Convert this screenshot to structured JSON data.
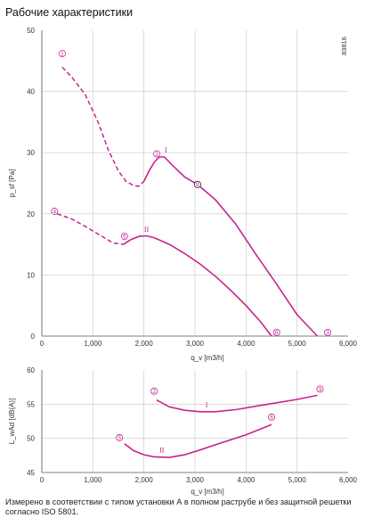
{
  "title": "Рабочие характеристики",
  "footnote": "Измерено в соответствии с типом установки А в полном раструбе и без защитной решетки согласно ISO 5801.",
  "colors": {
    "curve": "#c8238f",
    "grid": "#c8c8c8",
    "axis": "#555555"
  },
  "chart_data": [
    {
      "type": "line",
      "code": "83816",
      "xlabel": "q_v [m3/h]",
      "ylabel": "p_sf [Pa]",
      "xlim": [
        0,
        6000
      ],
      "ylim": [
        0,
        50
      ],
      "xticks": [
        "0",
        "1,000",
        "2,000",
        "3,000",
        "4,000",
        "5,000",
        "6,000"
      ],
      "yticks": [
        "0",
        "10",
        "20",
        "30",
        "40",
        "50"
      ],
      "grid": true,
      "series": [
        {
          "name": "I",
          "dashed_x": [
            400,
            600,
            850,
            1100,
            1300,
            1500,
            1650,
            1800,
            1900,
            2000
          ],
          "dashed_y": [
            44,
            42.2,
            39.5,
            35,
            30.5,
            27,
            25.3,
            24.6,
            24.5,
            25.3
          ],
          "x": [
            2000,
            2100,
            2200,
            2300,
            2400,
            2550,
            2800,
            3050,
            3400,
            3800,
            4200,
            4600,
            5000,
            5400
          ],
          "y": [
            25.3,
            27,
            28.4,
            29.3,
            29.3,
            28,
            26,
            24.8,
            22.3,
            18.3,
            13.3,
            8.5,
            3.5,
            0
          ]
        },
        {
          "name": "II",
          "dashed_x": [
            300,
            600,
            900,
            1200,
            1400,
            1600
          ],
          "dashed_y": [
            20,
            19.1,
            17.7,
            16.2,
            15.2,
            15
          ],
          "x": [
            1600,
            1750,
            1900,
            2050,
            2200,
            2500,
            2800,
            3100,
            3400,
            3700,
            4000,
            4300,
            4500
          ],
          "y": [
            15,
            15.8,
            16.3,
            16.4,
            16.1,
            15,
            13.5,
            11.8,
            9.8,
            7.5,
            5,
            2.2,
            0
          ]
        }
      ],
      "markers": [
        {
          "label": "1",
          "x": 400,
          "y": 46.2
        },
        {
          "label": "2",
          "x": 2250,
          "y": 29.8
        },
        {
          "label": "3",
          "x": 5600,
          "y": 0.6
        },
        {
          "label": "4",
          "x": 250,
          "y": 20.4
        },
        {
          "label": "5",
          "x": 1620,
          "y": 16.3
        },
        {
          "label": "6",
          "x": 4600,
          "y": 0.6
        },
        {
          "label": "9",
          "x": 3050,
          "y": 24.8
        }
      ]
    },
    {
      "type": "line",
      "xlabel": "q_v [m3/h]",
      "ylabel": "L_wAd [dB(A)]",
      "xlim": [
        0,
        6000
      ],
      "ylim": [
        45,
        60
      ],
      "xticks": [
        "0",
        "1,000",
        "2,000",
        "3,000",
        "4,000",
        "5,000",
        "6,000"
      ],
      "yticks": [
        "45",
        "50",
        "55",
        "60"
      ],
      "grid": true,
      "series": [
        {
          "name": "I",
          "x": [
            2250,
            2500,
            2800,
            3100,
            3400,
            3800,
            4200,
            4600,
            5000,
            5400
          ],
          "y": [
            55.6,
            54.6,
            54.1,
            53.9,
            53.9,
            54.2,
            54.7,
            55.2,
            55.7,
            56.3
          ]
        },
        {
          "name": "II",
          "x": [
            1620,
            1800,
            2000,
            2200,
            2500,
            2800,
            3100,
            3500,
            4000,
            4500
          ],
          "y": [
            49.2,
            48.2,
            47.6,
            47.3,
            47.2,
            47.6,
            48.3,
            49.3,
            50.5,
            52
          ]
        }
      ],
      "markers": [
        {
          "label": "2",
          "x": 2200,
          "y": 56.9
        },
        {
          "label": "3",
          "x": 5450,
          "y": 57.2
        },
        {
          "label": "5",
          "x": 1520,
          "y": 50.1
        },
        {
          "label": "6",
          "x": 4500,
          "y": 53.1
        }
      ]
    }
  ]
}
